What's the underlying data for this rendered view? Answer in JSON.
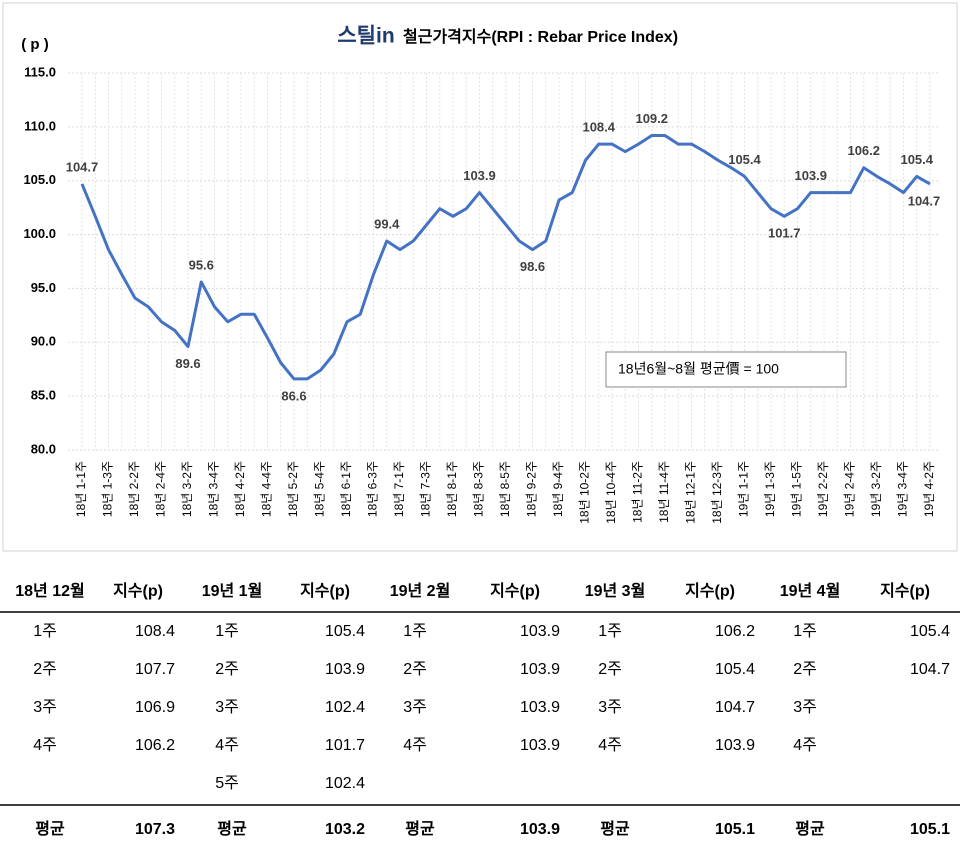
{
  "chart_data": {
    "type": "line",
    "logo": "스틸in",
    "title": "철근가격지수(RPI : Rebar Price Index)",
    "y_label": "( p )",
    "annotation": "18년6월~8월 평균價 = 100",
    "color": "#4472c4",
    "grid": true,
    "categories": [
      "18년 1-1주",
      null,
      "18년 1-3주",
      null,
      "18년 2-2주",
      null,
      "18년 2-4주",
      null,
      "18년 3-2주",
      null,
      "18년 3-4주",
      null,
      "18년 4-2주",
      null,
      "18년 4-4주",
      null,
      "18년 5-2주",
      null,
      "18년 5-4주",
      null,
      "18년 6-1주",
      null,
      "18년 6-3주",
      null,
      "18년 7-1주",
      null,
      "18년 7-3주",
      null,
      "18년 8-1주",
      null,
      "18년 8-3주",
      null,
      "18년 8-5주",
      null,
      "18년 9-2주",
      null,
      "18년 9-4주",
      null,
      "18년 10-2주",
      null,
      "18년 10-4주",
      null,
      "18년 11-2주",
      null,
      "18년 11-4주",
      null,
      "18년 12-1주",
      null,
      "18년 12-3주",
      null,
      "19년 1-1주",
      null,
      "19년 1-3주",
      null,
      "19년 1-5주",
      null,
      "19년 2-2주",
      null,
      "19년 2-4주",
      null,
      "19년 3-2주",
      null,
      "19년 3-4주",
      null,
      "19년 4-2주"
    ],
    "values": [
      104.7,
      101.7,
      98.6,
      96.3,
      94.1,
      93.3,
      91.9,
      91.1,
      89.6,
      95.6,
      93.3,
      91.9,
      92.6,
      92.6,
      90.4,
      88.1,
      86.6,
      86.6,
      87.4,
      88.9,
      91.9,
      92.6,
      96.3,
      99.4,
      98.6,
      99.4,
      100.9,
      102.4,
      101.7,
      102.4,
      103.9,
      102.4,
      100.9,
      99.4,
      98.6,
      99.4,
      103.2,
      103.9,
      106.9,
      108.4,
      108.4,
      107.7,
      108.4,
      109.2,
      109.2,
      108.4,
      108.4,
      107.7,
      106.9,
      106.2,
      105.4,
      103.9,
      102.4,
      101.7,
      102.4,
      103.9,
      103.9,
      103.9,
      103.9,
      106.2,
      105.4,
      104.7,
      103.9,
      105.4,
      104.7
    ],
    "value_labels": [
      "104.7",
      null,
      null,
      null,
      null,
      null,
      null,
      null,
      "89.6",
      "95.6",
      null,
      null,
      null,
      null,
      null,
      null,
      "86.6",
      null,
      null,
      null,
      null,
      null,
      null,
      "99.4",
      null,
      null,
      null,
      null,
      null,
      null,
      "103.9",
      null,
      null,
      null,
      "98.6",
      null,
      null,
      null,
      null,
      "108.4",
      null,
      null,
      null,
      "109.2",
      null,
      null,
      null,
      null,
      null,
      null,
      "105.4",
      null,
      null,
      "101.7",
      null,
      "103.9",
      null,
      null,
      null,
      "106.2",
      null,
      null,
      null,
      "105.4",
      "104.7"
    ],
    "ylim": [
      80,
      115
    ],
    "yticks": [
      {
        "value": 80,
        "label": "80.0"
      },
      {
        "value": 85,
        "label": "85.0"
      },
      {
        "value": 90,
        "label": "90.0"
      },
      {
        "value": 95,
        "label": "95.0"
      },
      {
        "value": 100,
        "label": "100.0"
      },
      {
        "value": 105,
        "label": "105.0"
      },
      {
        "value": 110,
        "label": "110.0"
      },
      {
        "value": 115,
        "label": "115.0"
      }
    ]
  },
  "table": {
    "header": [
      "18년 12월",
      "지수(p)",
      "19년 1월",
      "지수(p)",
      "19년 2월",
      "지수(p)",
      "19년 3월",
      "지수(p)",
      "19년 4월",
      "지수(p)"
    ],
    "rows": [
      [
        "1주",
        108.4,
        "1주",
        105.4,
        "1주",
        103.9,
        "1주",
        106.2,
        "1주",
        105.4
      ],
      [
        "2주",
        107.7,
        "2주",
        103.9,
        "2주",
        103.9,
        "2주",
        105.4,
        "2주",
        104.7
      ],
      [
        "3주",
        106.9,
        "3주",
        102.4,
        "3주",
        103.9,
        "3주",
        104.7,
        "3주",
        null
      ],
      [
        "4주",
        106.2,
        "4주",
        101.7,
        "4주",
        103.9,
        "4주",
        103.9,
        "4주",
        null
      ],
      [
        null,
        null,
        "5주",
        102.4,
        null,
        null,
        null,
        null,
        null,
        null
      ]
    ],
    "footer": [
      "평균",
      107.3,
      "평균",
      103.2,
      "평균",
      103.9,
      "평균",
      105.1,
      "평균",
      105.1
    ]
  }
}
